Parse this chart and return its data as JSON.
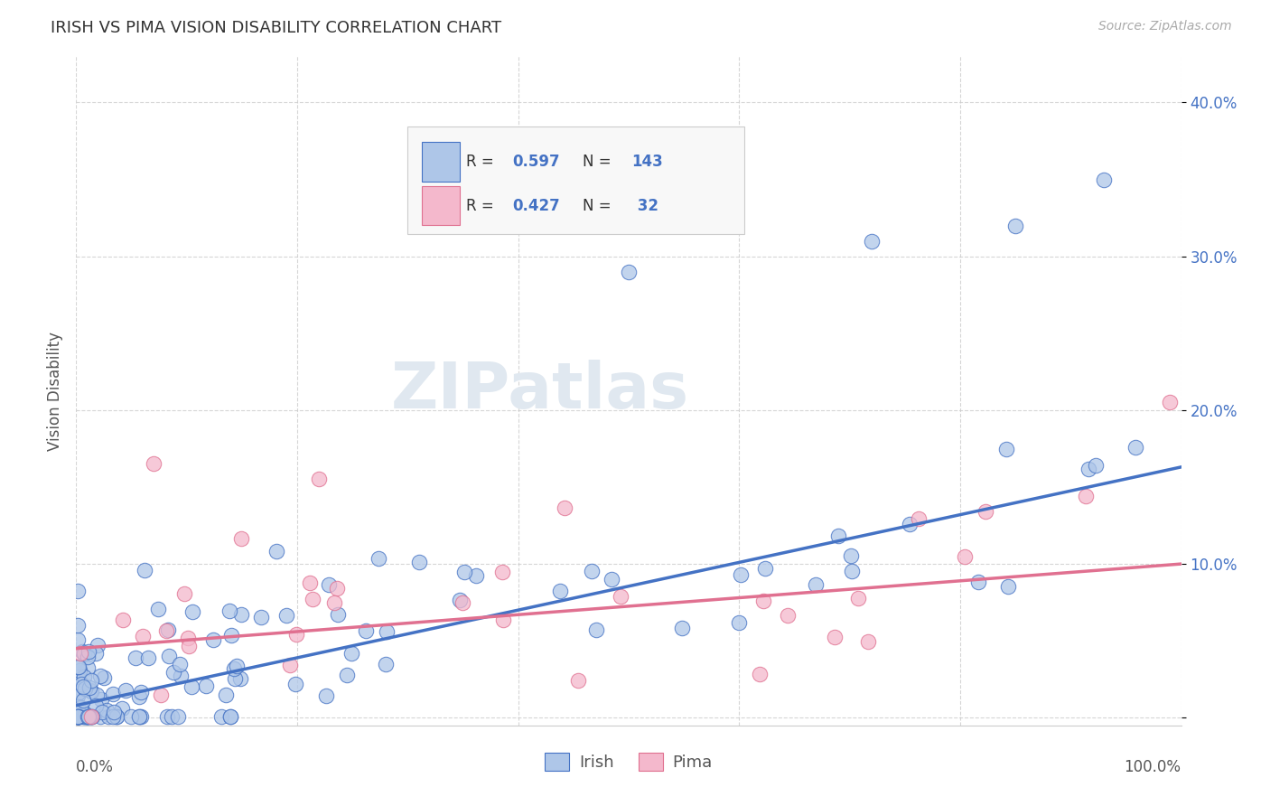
{
  "title": "IRISH VS PIMA VISION DISABILITY CORRELATION CHART",
  "source": "Source: ZipAtlas.com",
  "ylabel": "Vision Disability",
  "xlim": [
    0.0,
    1.0
  ],
  "ylim": [
    -0.005,
    0.43
  ],
  "yticks": [
    0.0,
    0.1,
    0.2,
    0.3,
    0.4
  ],
  "ytick_labels": [
    "",
    "10.0%",
    "20.0%",
    "30.0%",
    "40.0%"
  ],
  "xtick_labels": [
    "0.0%",
    "100.0%"
  ],
  "irish_color": "#aec6e8",
  "irish_edge_color": "#4472c4",
  "pima_color": "#f4b8cc",
  "pima_edge_color": "#e07090",
  "irish_R": "0.597",
  "irish_N": "143",
  "pima_R": "0.427",
  "pima_N": " 32",
  "irish_slope": 0.155,
  "irish_intercept": 0.008,
  "pima_slope": 0.055,
  "pima_intercept": 0.045,
  "background_color": "#ffffff",
  "grid_color": "#cccccc",
  "watermark": "ZIPatlas",
  "watermark_color": "#e0e8f0",
  "label_color": "#4472c4",
  "text_color": "#555555"
}
